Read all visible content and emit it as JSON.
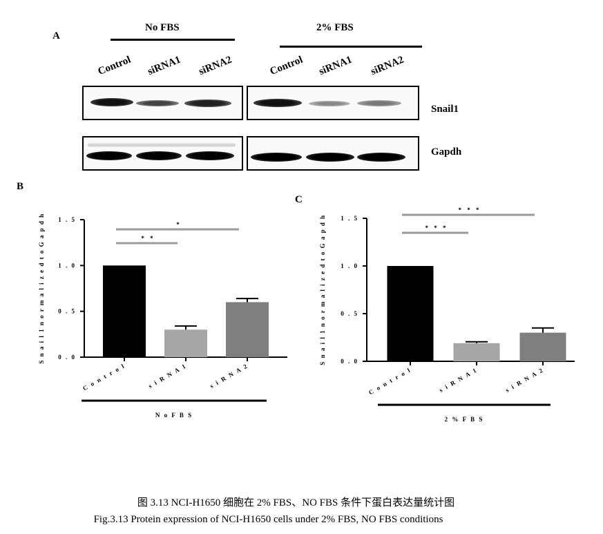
{
  "panel_a": {
    "letter": "A",
    "groups": [
      {
        "label": "No FBS",
        "lanes": [
          "Control",
          "siRNA1",
          "siRNA2"
        ]
      },
      {
        "label": "2% FBS",
        "lanes": [
          "Control",
          "siRNA1",
          "siRNA2"
        ]
      }
    ],
    "proteins": [
      "Snail1",
      "Gapdh"
    ]
  },
  "chart_data": [
    {
      "type": "bar",
      "panel": "B",
      "categories": [
        "Control",
        "siRNA1",
        "siRNA2"
      ],
      "values": [
        1.0,
        0.3,
        0.6
      ],
      "errors": [
        0.0,
        0.04,
        0.04
      ],
      "colors": [
        "#000000",
        "#a6a6a6",
        "#7f7f7f"
      ],
      "ylabel": "Snail1 normalized to Gapdh",
      "xlabel": "No FBS",
      "ylim": [
        0,
        1.5
      ],
      "yticks": [
        "0.0",
        "0.5",
        "1.0",
        "1.5"
      ],
      "annotations": [
        {
          "from": "Control",
          "to": "siRNA1",
          "label": "**"
        },
        {
          "from": "Control",
          "to": "siRNA2",
          "label": "*"
        }
      ]
    },
    {
      "type": "bar",
      "panel": "C",
      "categories": [
        "Control",
        "siRNA1",
        "siRNA2"
      ],
      "values": [
        1.0,
        0.19,
        0.3
      ],
      "errors": [
        0.0,
        0.015,
        0.05
      ],
      "colors": [
        "#000000",
        "#a6a6a6",
        "#7f7f7f"
      ],
      "ylabel": "Snail1 normalized to Gapdh",
      "xlabel": "2% FBS",
      "ylim": [
        0,
        1.5
      ],
      "yticks": [
        "0.0",
        "0.5",
        "1.0",
        "1.5"
      ],
      "annotations": [
        {
          "from": "Control",
          "to": "siRNA1",
          "label": "***"
        },
        {
          "from": "Control",
          "to": "siRNA2",
          "label": "***"
        }
      ]
    }
  ],
  "caption": {
    "zh": "图 3.13   NCI-H1650 细胞在 2% FBS、NO FBS 条件下蛋白表达量统计图",
    "en": "Fig.3.13    Protein expression of NCI-H1650 cells under 2% FBS, NO FBS conditions"
  }
}
